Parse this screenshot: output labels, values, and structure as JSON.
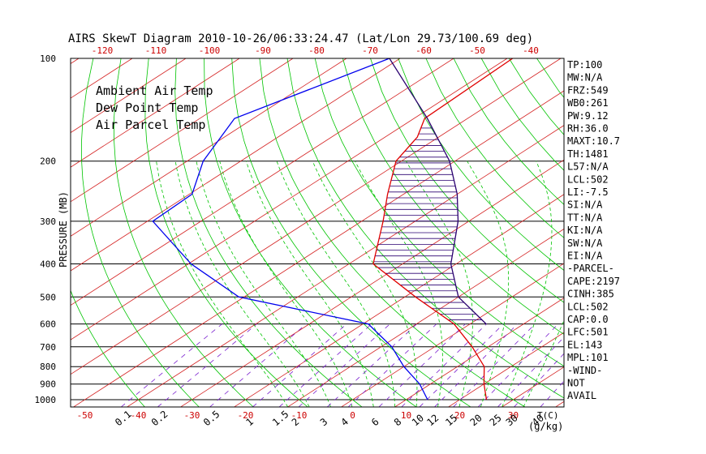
{
  "title": "AIRS SkewT Diagram 2010-10-26/06:33:24.47 (Lat/Lon 29.73/100.69 deg)",
  "colors": {
    "ambient": "#e00000",
    "dewpoint": "#0000ee",
    "parcel": "#2a0070",
    "isotherm": "#d42020",
    "dry_adiabat": "#00c400",
    "moist_adiabat": "#00c400",
    "mixing_ratio": "#7a1fcf"
  },
  "legend": {
    "ambient": "Ambient Air Temp",
    "dewpoint": "Dew Point Temp",
    "parcel": "Air Parcel Temp"
  },
  "y_axis_label": "PRESSURE (MB)",
  "top_axis_suffix": "T(C)",
  "mixing_ratio_unit": "(g/kg)",
  "chart_data": {
    "type": "line",
    "title": "AIRS SkewT Diagram 2010-10-26/06:33:24.47 (Lat/Lon 29.73/100.69 deg)",
    "xlabel": "T(C)",
    "ylabel": "PRESSURE (MB)",
    "pressure_levels": [
      100,
      200,
      300,
      400,
      500,
      600,
      700,
      800,
      900,
      1000
    ],
    "ylim": [
      1050,
      100
    ],
    "x_ticks_bottom": [
      -50,
      -40,
      -30,
      -20,
      -10,
      0,
      10,
      20,
      30
    ],
    "x_ticks_top": [
      -120,
      -110,
      -100,
      -90,
      -80,
      -70,
      -60,
      -50,
      -40
    ],
    "mixing_ratio_labels": [
      {
        "text": "0.1",
        "value": 0.1
      },
      {
        "text": "0.2",
        "value": 0.2
      },
      {
        "text": "0.5",
        "value": 0.5
      },
      {
        "text": "1",
        "value": 1
      },
      {
        "text": "1.5",
        "value": 1.5
      },
      {
        "text": "2",
        "value": 2
      },
      {
        "text": "3",
        "value": 3
      },
      {
        "text": "4",
        "value": 4
      },
      {
        "text": "6",
        "value": 6
      },
      {
        "text": "8",
        "value": 8
      },
      {
        "text": "10",
        "value": 10
      },
      {
        "text": "12",
        "value": 12
      },
      {
        "text": "15",
        "value": 15
      },
      {
        "text": "20",
        "value": 20
      },
      {
        "text": "25",
        "value": 25
      },
      {
        "text": "30",
        "value": 30
      },
      {
        "text": "40",
        "value": 40
      }
    ],
    "series": [
      {
        "name": "Ambient Air Temp",
        "points": [
          {
            "p": 100,
            "t": -69.0
          },
          {
            "p": 150,
            "t": -68.0
          },
          {
            "p": 170,
            "t": -64.0
          },
          {
            "p": 200,
            "t": -61.0
          },
          {
            "p": 250,
            "t": -53.0
          },
          {
            "p": 300,
            "t": -46.0
          },
          {
            "p": 400,
            "t": -35.5
          },
          {
            "p": 500,
            "t": -18.0
          },
          {
            "p": 600,
            "t": -3.0
          },
          {
            "p": 700,
            "t": 7.0
          },
          {
            "p": 800,
            "t": 15.0
          },
          {
            "p": 900,
            "t": 20.0
          },
          {
            "p": 1000,
            "t": 25.0
          }
        ]
      },
      {
        "name": "Dew Point Temp",
        "points": [
          {
            "p": 100,
            "t": -92.0
          },
          {
            "p": 150,
            "t": -103.5
          },
          {
            "p": 200,
            "t": -97.0
          },
          {
            "p": 250,
            "t": -89.5
          },
          {
            "p": 300,
            "t": -89.0
          },
          {
            "p": 400,
            "t": -69.5
          },
          {
            "p": 500,
            "t": -51.0
          },
          {
            "p": 600,
            "t": -19.0
          },
          {
            "p": 700,
            "t": -8.0
          },
          {
            "p": 800,
            "t": 0.0
          },
          {
            "p": 900,
            "t": 8.0
          },
          {
            "p": 1000,
            "t": 14.0
          }
        ]
      },
      {
        "name": "Air Parcel Temp",
        "points": [
          {
            "p": 100,
            "t": -92.0
          },
          {
            "p": 150,
            "t": -67.5
          },
          {
            "p": 200,
            "t": -51.0
          },
          {
            "p": 250,
            "t": -40.0
          },
          {
            "p": 300,
            "t": -32.0
          },
          {
            "p": 400,
            "t": -21.0
          },
          {
            "p": 500,
            "t": -10.0
          },
          {
            "p": 600,
            "t": 3.0
          }
        ]
      }
    ]
  },
  "indices": [
    "TP:100",
    "MW:N/A",
    "FRZ:549",
    "WB0:261",
    "PW:9.12",
    "RH:36.0",
    "MAXT:10.7",
    "TH:1481",
    "L57:N/A",
    "LCL:502",
    "LI:-7.5",
    "SI:N/A",
    "TT:N/A",
    "KI:N/A",
    "SW:N/A",
    "EI:N/A",
    "-PARCEL-",
    "CAPE:2197",
    "CINH:385",
    "LCL:502",
    "CAP:0.0",
    "LFC:501",
    "EL:143",
    "MPL:101",
    "-WIND-",
    "NOT",
    "AVAIL"
  ]
}
